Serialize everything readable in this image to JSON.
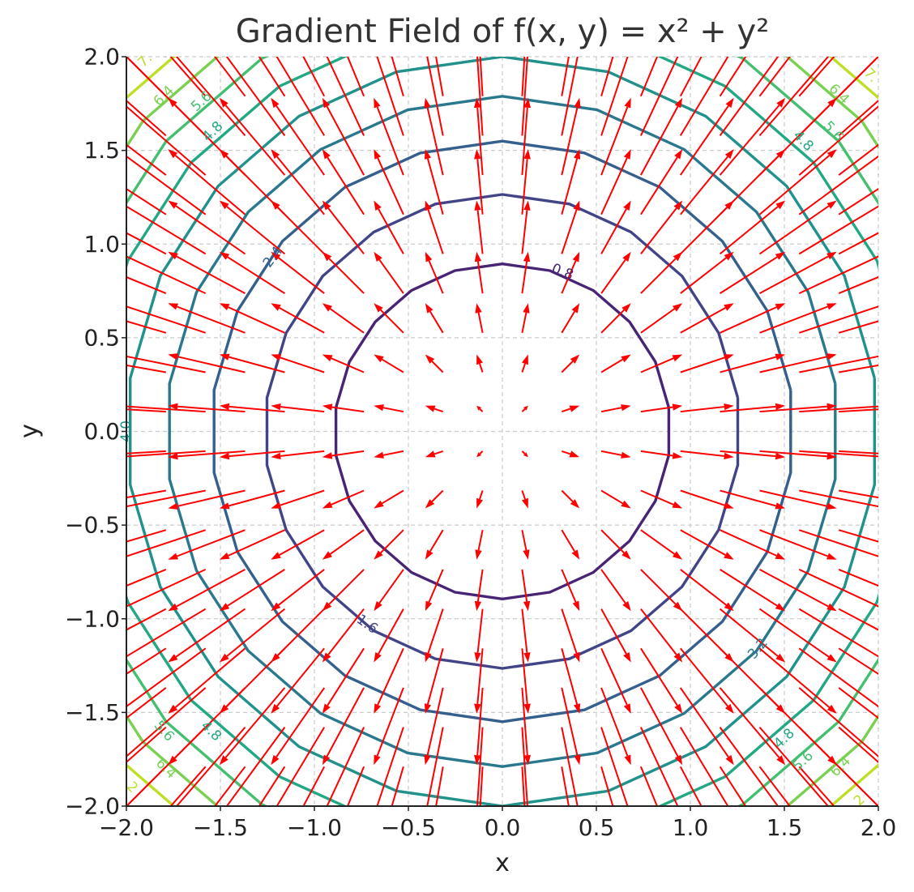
{
  "chart_data": {
    "type": "quiver-contour",
    "title": "Gradient Field of f(x, y) = x² + y²",
    "xlabel": "x",
    "ylabel": "y",
    "xlim": [
      -2.0,
      2.0
    ],
    "ylim": [
      -2.0,
      2.0
    ],
    "xticks": [
      -2.0,
      -1.5,
      -1.0,
      -0.5,
      0.0,
      0.5,
      1.0,
      1.5,
      2.0
    ],
    "yticks": [
      -2.0,
      -1.5,
      -1.0,
      -0.5,
      0.0,
      0.5,
      1.0,
      1.5,
      2.0
    ],
    "xtick_labels": [
      "−2.0",
      "−1.5",
      "−1.0",
      "−0.5",
      "0.0",
      "0.5",
      "1.0",
      "1.5",
      "2.0"
    ],
    "ytick_labels": [
      "−2.0",
      "−1.5",
      "−1.0",
      "−0.5",
      "0.0",
      "0.5",
      "1.0",
      "1.5",
      "2.0"
    ],
    "grid": true,
    "function": "f(x, y) = x² + y²",
    "gradient": "(2x, 2y)",
    "arrow_color": "#ff0000",
    "quiver_grid": {
      "x": [
        -2.0,
        -1.7895,
        -1.5789,
        -1.3684,
        -1.1579,
        -0.9474,
        -0.7368,
        -0.5263,
        -0.3158,
        -0.1053,
        0.1053,
        0.3158,
        0.5263,
        0.7368,
        0.9474,
        1.1579,
        1.3684,
        1.5789,
        1.7895,
        2.0
      ],
      "y": [
        -2.0,
        -1.7895,
        -1.5789,
        -1.3684,
        -1.1579,
        -0.9474,
        -0.7368,
        -0.5263,
        -0.3158,
        -0.1053,
        0.1053,
        0.3158,
        0.5263,
        0.7368,
        0.9474,
        1.1579,
        1.3684,
        1.5789,
        1.7895,
        2.0
      ]
    },
    "contour_levels": [
      {
        "level": 0.8,
        "color": "#482475"
      },
      {
        "level": 1.6,
        "color": "#414487"
      },
      {
        "level": 2.4,
        "color": "#355f8d"
      },
      {
        "level": 3.2,
        "color": "#2a788e"
      },
      {
        "level": 4.0,
        "color": "#21918c"
      },
      {
        "level": 4.8,
        "color": "#22a884"
      },
      {
        "level": 5.6,
        "color": "#44bf70"
      },
      {
        "level": 6.4,
        "color": "#7ad151"
      },
      {
        "level": 7.2,
        "color": "#bddf26"
      }
    ],
    "contour_labels": [
      {
        "text": "0.8",
        "x": 0.32,
        "y": 0.85,
        "level": 0.8
      },
      {
        "text": "1.6",
        "x": -0.72,
        "y": -1.03,
        "level": 1.6
      },
      {
        "text": "2.4",
        "x": -1.22,
        "y": 0.93,
        "level": 2.4
      },
      {
        "text": "3.2",
        "x": 1.36,
        "y": -1.16,
        "level": 3.2
      },
      {
        "text": "4.0",
        "x": -2.0,
        "y": 0.0,
        "level": 4.0
      },
      {
        "text": "4.8",
        "x": -1.54,
        "y": 1.6,
        "level": 4.8
      },
      {
        "text": "4.8",
        "x": 1.6,
        "y": 1.55,
        "level": 4.8
      },
      {
        "text": "4.8",
        "x": -1.55,
        "y": -1.6,
        "level": 4.8
      },
      {
        "text": "4.8",
        "x": 1.5,
        "y": -1.64,
        "level": 4.8
      },
      {
        "text": "5.6",
        "x": -1.6,
        "y": 1.76,
        "level": 5.6
      },
      {
        "text": "5.6",
        "x": 1.76,
        "y": 1.6,
        "level": 5.6
      },
      {
        "text": "5.6",
        "x": -1.8,
        "y": -1.6,
        "level": 5.6
      },
      {
        "text": "5.6",
        "x": 1.6,
        "y": -1.76,
        "level": 5.6
      },
      {
        "text": "6.4",
        "x": -1.8,
        "y": 1.79,
        "level": 6.4
      },
      {
        "text": "6.4",
        "x": 1.79,
        "y": 1.8,
        "level": 6.4
      },
      {
        "text": "6.4",
        "x": -1.79,
        "y": -1.8,
        "level": 6.4
      },
      {
        "text": "6.4",
        "x": 1.8,
        "y": -1.79,
        "level": 6.4
      },
      {
        "text": "7.",
        "x": -1.9,
        "y": 1.98,
        "level": 7.2
      },
      {
        "text": "7.",
        "x": 1.96,
        "y": 1.9,
        "level": 7.2
      },
      {
        "text": "2",
        "x": -1.97,
        "y": -1.9,
        "level": 7.2
      },
      {
        "text": "2",
        "x": 1.9,
        "y": -1.97,
        "level": 7.2
      }
    ]
  }
}
